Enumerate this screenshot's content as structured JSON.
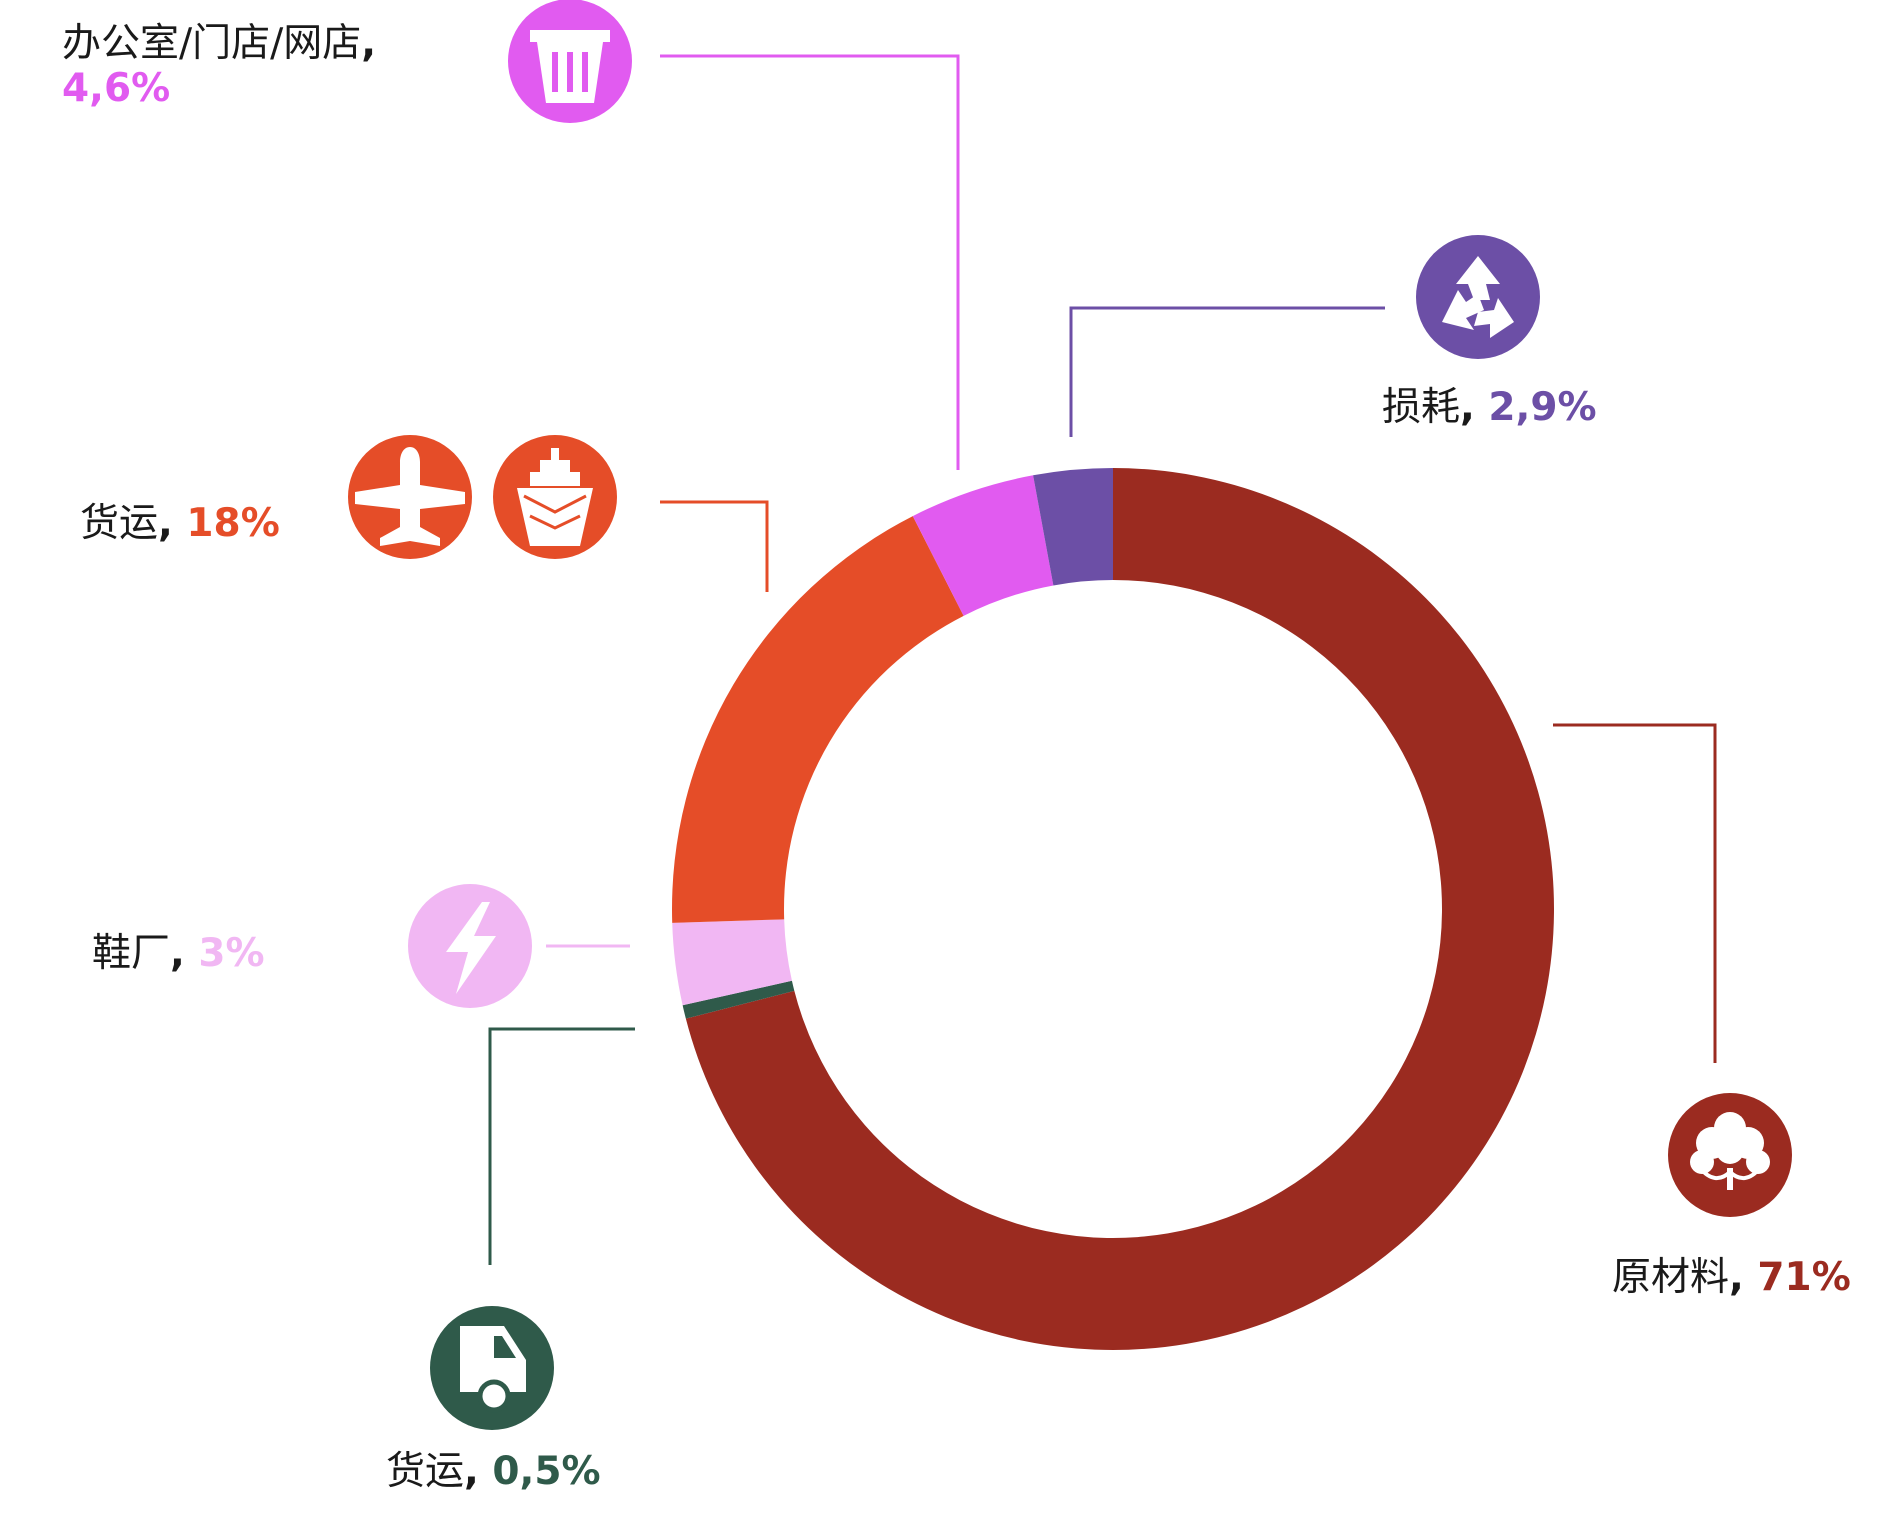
{
  "chart_data": {
    "type": "pie",
    "donut": true,
    "title": "",
    "slices": [
      {
        "key": "raw",
        "label": "原材料",
        "value": 71,
        "value_text": "71%",
        "color": "#9b2b20",
        "icon": "cotton-icon"
      },
      {
        "key": "truck",
        "label": "货运",
        "value": 0.5,
        "value_text": "0,5%",
        "color": "#2f5a4a",
        "icon": "truck-icon"
      },
      {
        "key": "shoe",
        "label": "鞋厂",
        "value": 3,
        "value_text": "3%",
        "color": "#f1b7f3",
        "icon": "lightning-icon"
      },
      {
        "key": "ship",
        "label": "货运",
        "value": 18,
        "value_text": "18%",
        "color": "#e54d28",
        "icon": [
          "airplane-icon",
          "ship-icon"
        ]
      },
      {
        "key": "store",
        "label": "办公室/门店/网店",
        "value": 4.6,
        "value_text": "4,6%",
        "color": "#e15bf0",
        "icon": "trash-bin-icon"
      },
      {
        "key": "waste",
        "label": "损耗",
        "value": 2.9,
        "value_text": "2,9%",
        "color": "#6c4fa6",
        "icon": "recycle-icon"
      }
    ]
  }
}
